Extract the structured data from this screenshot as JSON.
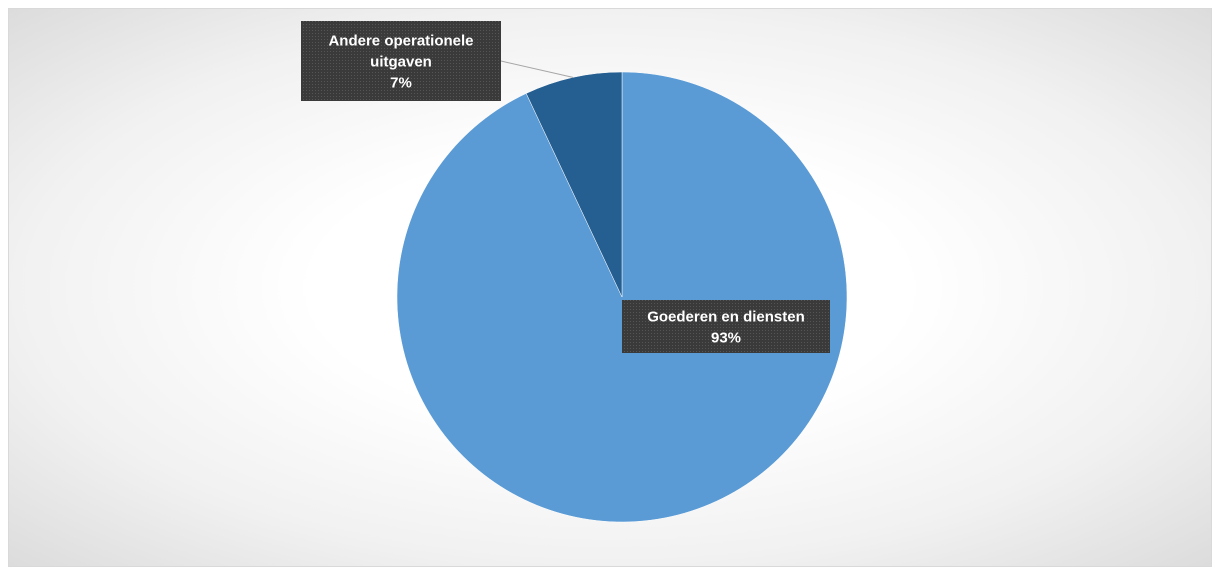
{
  "chart_data": {
    "type": "pie",
    "title": "",
    "categories": [
      "Goederen en diensten",
      "Andere operationele uitgaven"
    ],
    "values": [
      93,
      7
    ],
    "value_labels": [
      "93%",
      "7%"
    ],
    "label_lines": [
      [
        "Goederen en diensten"
      ],
      [
        "Andere operationele",
        "uitgaven"
      ]
    ],
    "colors": [
      "#5b9bd5",
      "#255e91"
    ],
    "label_box_color": "#3a3a3a",
    "legend": "none",
    "start_angle": "12 o'clock",
    "direction": "clockwise"
  }
}
